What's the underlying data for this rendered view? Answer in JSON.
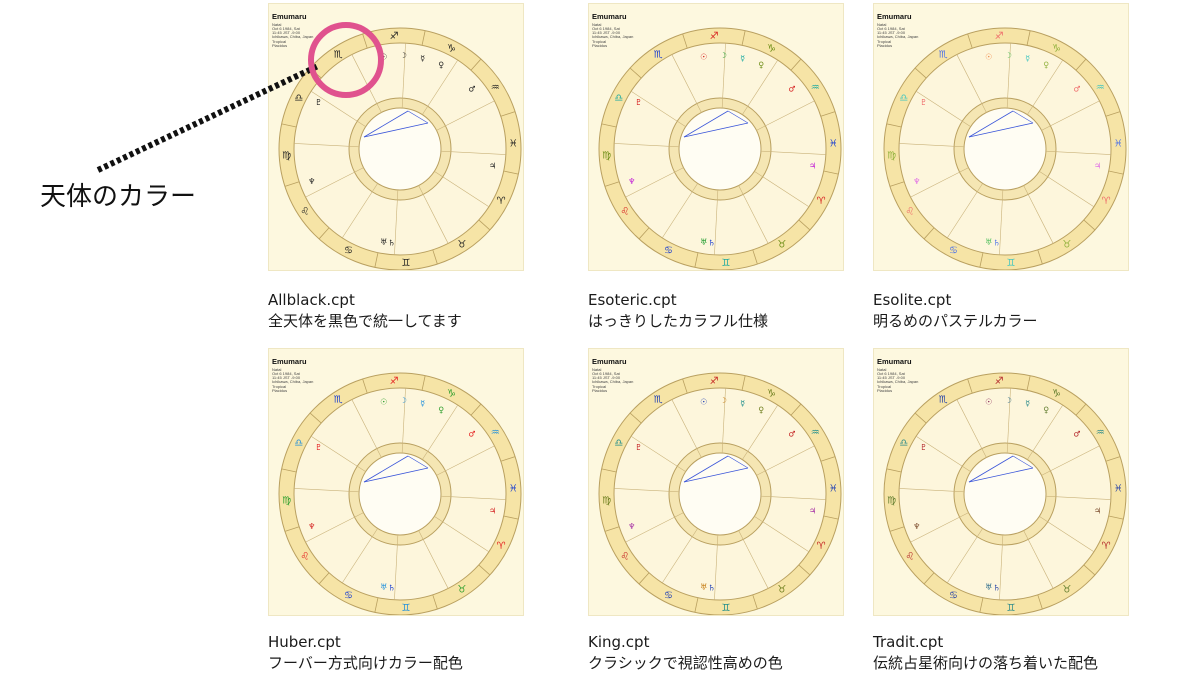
{
  "callout": {
    "label": "天体のカラー",
    "circle_color": "#e0528e"
  },
  "chart_header": {
    "title": "Emumaru",
    "lines": [
      "Natal",
      "Oct 6 1984, Sat",
      "11:45 JST -9:00",
      "Ichikawa, Chiba, Japan",
      "Tropical",
      "Placidus"
    ]
  },
  "themes": [
    {
      "file": "Allblack.cpt",
      "desc": "全天体を黒色で統一してます",
      "colors": {
        "fire": "#222222",
        "earth": "#222222",
        "air": "#222222",
        "water": "#222222",
        "planet_a": "#222222",
        "planet_b": "#222222",
        "planet_c": "#222222"
      }
    },
    {
      "file": "Esoteric.cpt",
      "desc": "はっきりしたカラフル仕様",
      "colors": {
        "fire": "#d61f1f",
        "earth": "#6a8b12",
        "air": "#1aa9a0",
        "water": "#1b3fd1",
        "planet_a": "#c11bd6",
        "planet_b": "#1b9b2c",
        "planet_c": "#d61f1f"
      }
    },
    {
      "file": "Esolite.cpt",
      "desc": "明るめのパステルカラー",
      "colors": {
        "fire": "#ef6b6b",
        "earth": "#8fb03a",
        "air": "#42c6c0",
        "water": "#4e72e8",
        "planet_a": "#e06be6",
        "planet_b": "#52c05e",
        "planet_c": "#ef8a4b"
      }
    },
    {
      "file": "Huber.cpt",
      "desc": "フーバー方式向けカラー配色",
      "colors": {
        "fire": "#e52020",
        "earth": "#2a9d2a",
        "air": "#1f8fdc",
        "water": "#1b3fd1",
        "planet_a": "#d42020",
        "planet_b": "#1f8fdc",
        "planet_c": "#2a9d2a"
      }
    },
    {
      "file": "King.cpt",
      "desc": "クラシックで視認性高めの色",
      "colors": {
        "fire": "#c42121",
        "earth": "#6a7b19",
        "air": "#198b8b",
        "water": "#1f3fb5",
        "planet_a": "#a32aa3",
        "planet_b": "#c47a11",
        "planet_c": "#1f3fb5"
      }
    },
    {
      "file": "Tradit.cpt",
      "desc": "伝統占星術向けの落ち着いた配色",
      "colors": {
        "fire": "#b3262a",
        "earth": "#5d7a2b",
        "air": "#2a8a8a",
        "water": "#2a45a8",
        "planet_a": "#7a4a2a",
        "planet_b": "#2a6a8a",
        "planet_c": "#8a2a5a"
      }
    }
  ]
}
